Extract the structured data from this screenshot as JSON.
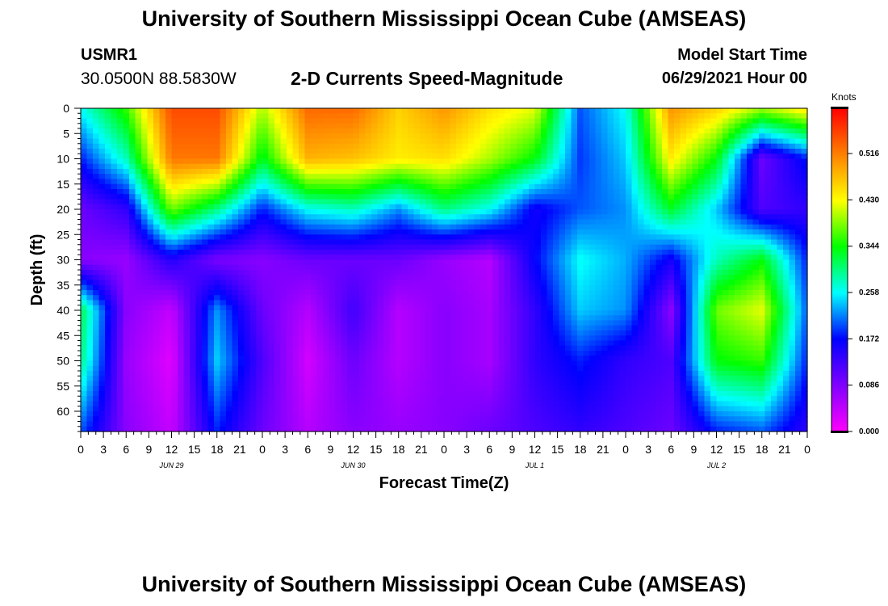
{
  "header": {
    "title": "University of Southern Mississippi Ocean Cube (AMSEAS)",
    "station_id": "USMR1",
    "station_coords": "30.0500N  88.5830W",
    "chart_title": "2-D Currents Speed-Magnitude",
    "model_start_label": "Model Start Time",
    "model_start_value": "06/29/2021 Hour 00"
  },
  "footer": {
    "title": "University of Southern Mississippi Ocean Cube (AMSEAS)"
  },
  "chart_data": {
    "type": "heatmap",
    "title": "2-D Currents Speed-Magnitude",
    "xlabel": "Forecast Time(Z)",
    "ylabel": "Depth (ft)",
    "x_range": [
      0,
      96
    ],
    "y_range": [
      0,
      64
    ],
    "x_tick_labels": [
      "0",
      "3",
      "6",
      "9",
      "12",
      "15",
      "18",
      "21",
      "0",
      "3",
      "6",
      "9",
      "12",
      "15",
      "18",
      "21",
      "0",
      "3",
      "6",
      "9",
      "12",
      "15",
      "18",
      "21",
      "0",
      "3",
      "6",
      "9",
      "12",
      "15",
      "18",
      "21",
      "0"
    ],
    "x_date_labels": [
      "JUN 29",
      "JUN 30",
      "JUL 1",
      "JUL 2"
    ],
    "y_tick_labels": [
      "0",
      "5",
      "10",
      "15",
      "20",
      "25",
      "30",
      "35",
      "40",
      "45",
      "50",
      "55",
      "60"
    ],
    "colorbar": {
      "label": "Knots",
      "range": [
        0.0,
        0.6
      ],
      "tick_labels": [
        "0.516",
        "0.430",
        "0.344",
        "0.258",
        "0.172",
        "0.086",
        "0.000"
      ],
      "colors": [
        "#ff00ff",
        "#8000ff",
        "#0000ff",
        "#00ffff",
        "#00ff00",
        "#ffff00",
        "#ff8000",
        "#ff0000"
      ]
    },
    "grid_times_hours": [
      0,
      6,
      12,
      18,
      24,
      30,
      36,
      42,
      48,
      54,
      60,
      66,
      72,
      78,
      84,
      90,
      96
    ],
    "grid_depths_ft": [
      0,
      10,
      20,
      30,
      40,
      50,
      64
    ],
    "speeds_knots": [
      [
        0.26,
        0.36,
        0.55,
        0.55,
        0.4,
        0.53,
        0.53,
        0.46,
        0.5,
        0.45,
        0.42,
        0.2,
        0.26,
        0.5,
        0.46,
        0.4,
        0.45
      ],
      [
        0.18,
        0.28,
        0.52,
        0.52,
        0.33,
        0.48,
        0.47,
        0.44,
        0.45,
        0.4,
        0.34,
        0.19,
        0.24,
        0.44,
        0.34,
        0.1,
        0.18
      ],
      [
        0.1,
        0.14,
        0.38,
        0.3,
        0.18,
        0.26,
        0.28,
        0.22,
        0.3,
        0.26,
        0.16,
        0.2,
        0.22,
        0.33,
        0.24,
        0.12,
        0.14
      ],
      [
        0.08,
        0.07,
        0.15,
        0.09,
        0.08,
        0.1,
        0.1,
        0.1,
        0.07,
        0.05,
        0.17,
        0.26,
        0.23,
        0.16,
        0.28,
        0.34,
        0.18
      ],
      [
        0.32,
        0.08,
        0.04,
        0.22,
        0.1,
        0.05,
        0.13,
        0.05,
        0.08,
        0.06,
        0.14,
        0.24,
        0.22,
        0.08,
        0.38,
        0.42,
        0.2
      ],
      [
        0.3,
        0.07,
        0.02,
        0.24,
        0.12,
        0.03,
        0.1,
        0.05,
        0.08,
        0.06,
        0.14,
        0.18,
        0.14,
        0.12,
        0.34,
        0.36,
        0.18
      ],
      [
        0.2,
        0.08,
        0.04,
        0.18,
        0.1,
        0.05,
        0.08,
        0.07,
        0.08,
        0.1,
        0.12,
        0.14,
        0.12,
        0.1,
        0.18,
        0.2,
        0.14
      ]
    ]
  }
}
